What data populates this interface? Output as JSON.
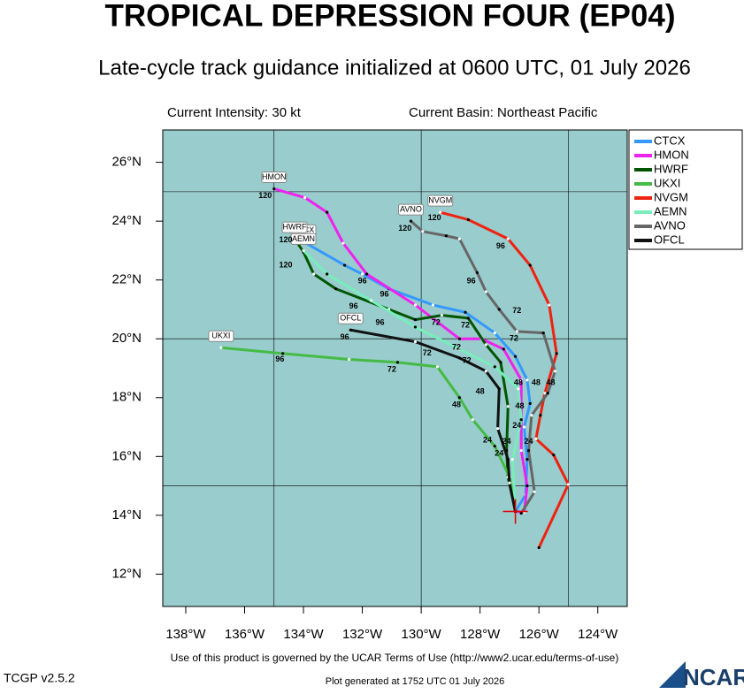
{
  "chart_data": {
    "type": "track-map",
    "title": "TROPICAL DEPRESSION FOUR (EP04)",
    "subtitle": "Late-cycle track guidance initialized at 0600 UTC, 01 July 2026",
    "intensity": "Current Intensity: 30 kt",
    "basin": "Current Basin: Northeast Pacific",
    "terms": "Use of this product is governed by the UCAR Terms of Use (http://www2.ucar.edu/terms-of-use)",
    "version": "TCGP v2.5.2",
    "generated": "Plot generated at 1752 UTC   01 July 2026",
    "logo": "NCAR",
    "xlim": [
      -138.78,
      -123.0
    ],
    "ylim": [
      10.9,
      27.1
    ],
    "xticks": [
      {
        "value": -138,
        "label": "138°W"
      },
      {
        "value": -136,
        "label": "136°W"
      },
      {
        "value": -134,
        "label": "134°W"
      },
      {
        "value": -132,
        "label": "132°W"
      },
      {
        "value": -130,
        "label": "130°W"
      },
      {
        "value": -128,
        "label": "128°W"
      },
      {
        "value": -126,
        "label": "126°W"
      },
      {
        "value": -124,
        "label": "124°W"
      }
    ],
    "yticks": [
      {
        "value": 12,
        "label": "12°N"
      },
      {
        "value": 14,
        "label": "14°N"
      },
      {
        "value": 16,
        "label": "16°N"
      },
      {
        "value": 18,
        "label": "18°N"
      },
      {
        "value": 20,
        "label": "20°N"
      },
      {
        "value": 22,
        "label": "22°N"
      },
      {
        "value": 24,
        "label": "24°N"
      },
      {
        "value": 26,
        "label": "26°N"
      }
    ],
    "grid_lon": [
      -135,
      -130,
      -125
    ],
    "grid_lat": [
      15,
      20,
      25
    ],
    "current_position": {
      "lon": -126.8,
      "lat": 14.13
    },
    "series": [
      {
        "name": "CTCX",
        "color": "#3399ff",
        "lon": [
          -126.8,
          -126.45,
          -126.4,
          -126.5,
          -126.3,
          -126.4,
          -126.8,
          -127.5,
          -128.5,
          -129.6,
          -131.1,
          -132.0,
          -132.6,
          -134.0
        ],
        "lat": [
          14.13,
          14.7,
          15.9,
          17.0,
          17.8,
          18.6,
          19.4,
          20.2,
          20.9,
          21.15,
          21.7,
          22.2,
          22.5,
          23.3
        ]
      },
      {
        "name": "HMON",
        "color": "#ee22ee",
        "lon": [
          -126.8,
          -126.5,
          -126.4,
          -126.6,
          -126.6,
          -126.6,
          -127.2,
          -127.95,
          -128.7,
          -130.2,
          -131.85,
          -132.65,
          -133.2,
          -133.95,
          -135.0
        ],
        "lat": [
          14.13,
          14.1,
          15.0,
          16.2,
          17.25,
          18.6,
          19.65,
          20.0,
          20.0,
          21.15,
          22.2,
          23.25,
          24.3,
          24.8,
          25.1
        ]
      },
      {
        "name": "HWRF",
        "color": "#005500",
        "lon": [
          -126.8,
          -127.05,
          -127.1,
          -127.05,
          -127.3,
          -127.8,
          -128.4,
          -129.3,
          -130.2,
          -131.1,
          -132.9,
          -133.65,
          -134.0,
          -134.3
        ],
        "lat": [
          14.13,
          15.3,
          16.2,
          17.7,
          19.2,
          19.8,
          20.7,
          20.8,
          20.65,
          21.0,
          21.7,
          22.2,
          22.95,
          23.4
        ]
      },
      {
        "name": "UKXI",
        "color": "#44bb44",
        "lon": [
          -126.8,
          -127.0,
          -127.5,
          -128.25,
          -128.7,
          -129.45,
          -130.8,
          -132.45,
          -134.7,
          -136.8
        ],
        "lat": [
          14.13,
          15.3,
          16.35,
          17.25,
          18.0,
          19.05,
          19.2,
          19.3,
          19.5,
          19.7
        ]
      },
      {
        "name": "NVGM",
        "color": "#ee2211",
        "lon": [
          -126.0,
          -125.0,
          -125.5,
          -126.1,
          -125.95,
          -125.8,
          -125.4,
          -125.65,
          -126.3,
          -127.05,
          -128.4,
          -129.35
        ],
        "lat": [
          12.9,
          15.05,
          16.05,
          16.6,
          17.4,
          18.15,
          19.5,
          21.15,
          22.5,
          23.4,
          24.05,
          24.3
        ]
      },
      {
        "name": "AEMN",
        "color": "#77eebb",
        "lon": [
          -126.8,
          -126.9,
          -126.6,
          -126.7,
          -127.5,
          -128.7,
          -130.2,
          -131.7,
          -133.2,
          -134.0
        ],
        "lat": [
          14.13,
          15.9,
          17.25,
          18.3,
          19.05,
          19.65,
          20.4,
          21.3,
          22.2,
          23.0
        ]
      },
      {
        "name": "AVNO",
        "color": "#666666",
        "lon": [
          -126.6,
          -126.15,
          -126.35,
          -126.25,
          -125.7,
          -125.45,
          -125.85,
          -126.75,
          -127.35,
          -127.8,
          -128.1,
          -128.7,
          -129.15,
          -129.95,
          -130.35
        ],
        "lat": [
          14.07,
          14.8,
          16.2,
          17.4,
          18.15,
          18.9,
          20.2,
          20.25,
          21.0,
          21.6,
          22.25,
          23.4,
          23.5,
          23.65,
          24.0
        ]
      },
      {
        "name": "OFCL",
        "color": "#111111",
        "lon": [
          -126.8,
          -127.0,
          -127.05,
          -127.4,
          -127.35,
          -127.8,
          -128.7,
          -130.2,
          -132.4
        ],
        "lat": [
          14.13,
          15.1,
          15.9,
          16.95,
          18.3,
          18.9,
          19.35,
          19.9,
          20.3
        ]
      }
    ],
    "tau_labels": [
      {
        "label": "120",
        "lon": -135.3,
        "lat": 24.85
      },
      {
        "label": "120",
        "lon": -134.6,
        "lat": 23.35
      },
      {
        "label": "120",
        "lon": -134.6,
        "lat": 22.5
      },
      {
        "label": "120",
        "lon": -130.55,
        "lat": 23.75
      },
      {
        "label": "120",
        "lon": -129.55,
        "lat": 24.1
      },
      {
        "label": "96",
        "lon": -132.0,
        "lat": 21.95
      },
      {
        "label": "96",
        "lon": -131.25,
        "lat": 21.5
      },
      {
        "label": "96",
        "lon": -132.3,
        "lat": 21.1
      },
      {
        "label": "96",
        "lon": -131.4,
        "lat": 20.55
      },
      {
        "label": "96",
        "lon": -132.6,
        "lat": 20.05
      },
      {
        "label": "96",
        "lon": -134.8,
        "lat": 19.3
      },
      {
        "label": "96",
        "lon": -128.3,
        "lat": 21.95
      },
      {
        "label": "96",
        "lon": -127.3,
        "lat": 23.15
      },
      {
        "label": "72",
        "lon": -129.5,
        "lat": 20.55
      },
      {
        "label": "72",
        "lon": -128.5,
        "lat": 20.45
      },
      {
        "label": "72",
        "lon": -126.85,
        "lat": 20.0
      },
      {
        "label": "72",
        "lon": -128.8,
        "lat": 19.7
      },
      {
        "label": "72",
        "lon": -129.8,
        "lat": 19.5
      },
      {
        "label": "72",
        "lon": -128.45,
        "lat": 19.25
      },
      {
        "label": "72",
        "lon": -131.0,
        "lat": 18.95
      },
      {
        "label": "72",
        "lon": -126.75,
        "lat": 20.95
      },
      {
        "label": "48",
        "lon": -128.0,
        "lat": 18.2
      },
      {
        "label": "48",
        "lon": -128.8,
        "lat": 17.75
      },
      {
        "label": "48",
        "lon": -126.7,
        "lat": 18.5
      },
      {
        "label": "48",
        "lon": -126.65,
        "lat": 17.7
      },
      {
        "label": "48",
        "lon": -126.1,
        "lat": 18.5
      },
      {
        "label": "48",
        "lon": -125.6,
        "lat": 18.5
      },
      {
        "label": "24",
        "lon": -127.75,
        "lat": 16.55
      },
      {
        "label": "24",
        "lon": -126.75,
        "lat": 17.05
      },
      {
        "label": "24",
        "lon": -126.35,
        "lat": 16.5
      },
      {
        "label": "24",
        "lon": -127.35,
        "lat": 16.1
      },
      {
        "label": "24",
        "lon": -127.1,
        "lat": 16.5
      }
    ]
  }
}
